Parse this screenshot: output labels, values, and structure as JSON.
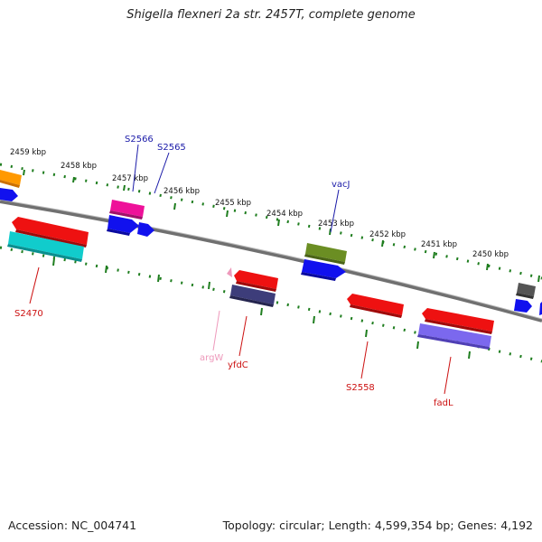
{
  "title": "Shigella flexneri 2a str. 2457T, complete genome",
  "footer": {
    "accession": "Accession: NC_004741",
    "summary": "Topology: circular; Length: 4,599,354 bp; Genes: 4,192"
  },
  "kbp_labels": [
    "2459 kbp",
    "2458 kbp",
    "2457 kbp",
    "2456 kbp",
    "2455 kbp",
    "2454 kbp",
    "2453 kbp",
    "2452 kbp",
    "2451 kbp",
    "2450 kbp"
  ],
  "gene_labels": [
    "S2566",
    "S2565",
    "vacJ",
    "S2470",
    "argW",
    "yfdC",
    "S2558",
    "fadL"
  ],
  "colors": {
    "backbone": "#808080",
    "tick_green": "#1e7d1e",
    "forward_blue_label": "#1a1aa8",
    "reverse_red_label": "#cc1111",
    "trna_pink": "#ee99bb",
    "orange": "#ff9900",
    "red": "#ee1111",
    "cyan": "#11cccc",
    "blue": "#1111ee",
    "magenta": "#ee1199",
    "olive": "#6b8e23",
    "navy": "#3d3d7a",
    "lavender": "#7b68ee",
    "gray": "#555555"
  }
}
